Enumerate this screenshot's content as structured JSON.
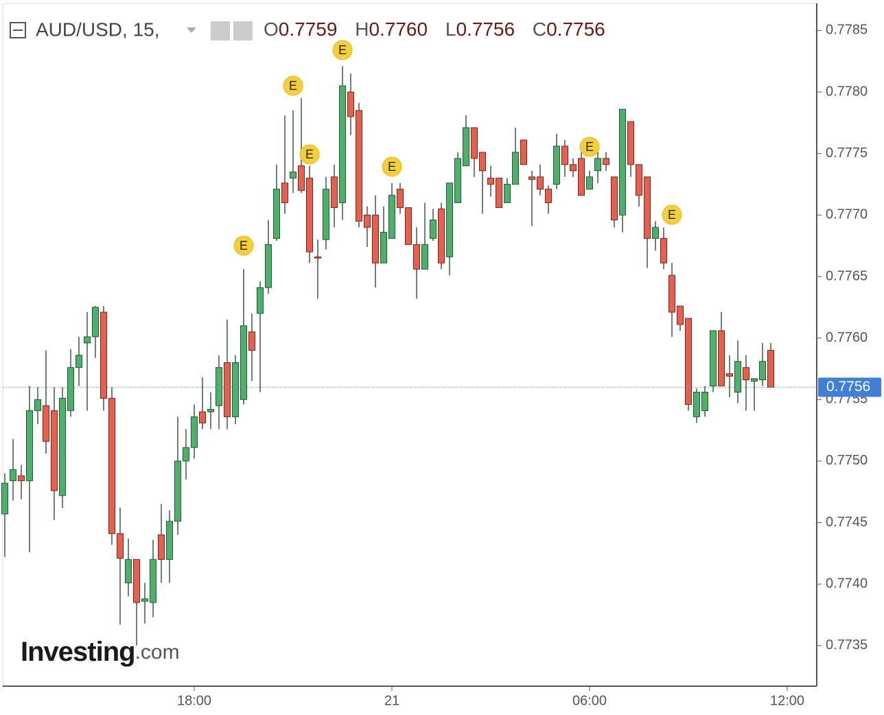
{
  "chart_data": {
    "type": "candlestick",
    "header": {
      "symbol": "AUD/USD, 15,",
      "open_label": "O",
      "open": "0.7759",
      "high_label": "H",
      "high": "0.7760",
      "low_label": "L",
      "low": "0.7756",
      "close_label": "C",
      "close": "0.7756"
    },
    "watermark": {
      "brand": "Investing",
      "suffix": ".com"
    },
    "categories": [
      null,
      null,
      null,
      null,
      null,
      null,
      null,
      null,
      null,
      null,
      null,
      null,
      null,
      null,
      null,
      null,
      null,
      null,
      null,
      null,
      null,
      null,
      null,
      "18:00",
      null,
      null,
      null,
      null,
      null,
      null,
      null,
      null,
      null,
      null,
      null,
      null,
      null,
      null,
      null,
      null,
      null,
      null,
      null,
      null,
      null,
      null,
      null,
      "21",
      null,
      null,
      null,
      null,
      null,
      null,
      null,
      null,
      null,
      null,
      null,
      null,
      null,
      null,
      null,
      null,
      null,
      null,
      null,
      null,
      null,
      null,
      null,
      "06:00",
      null,
      null,
      null,
      null,
      null,
      null,
      null,
      null,
      null,
      null,
      null,
      null,
      null,
      null,
      null,
      null,
      null,
      null,
      null,
      null,
      null,
      null,
      null,
      "12:00"
    ],
    "open": [
      0.77457,
      0.77484,
      0.77488,
      0.77484,
      0.77541,
      0.77545,
      0.77541,
      0.77472,
      0.77541,
      0.77576,
      0.77596,
      0.77601,
      0.77621,
      0.77551,
      0.77441,
      0.77401,
      0.7742,
      0.77386,
      0.77385,
      0.7744,
      0.7742,
      0.77451,
      0.775,
      0.77511,
      0.7754,
      0.7754,
      0.77545,
      0.7758,
      0.77536,
      0.7755,
      0.77605,
      0.7762,
      0.77641,
      0.77681,
      0.77726,
      0.7773,
      0.7774,
      0.7773,
      0.77666,
      0.7768,
      0.77731,
      0.7771,
      0.778,
      0.77785,
      0.777,
      0.777,
      0.77661,
      0.77681,
      0.77721,
      0.77706,
      0.77676,
      0.77656,
      0.77681,
      0.77705,
      0.77666,
      0.7771,
      0.7774,
      0.77771,
      0.77751,
      0.7773,
      0.7773,
      0.7771,
      0.77725,
      0.77761,
      0.77731,
      0.77731,
      0.77721,
      0.77725,
      0.77756,
      0.77741,
      0.77746,
      0.77721,
      0.77736,
      0.77746,
      0.77731,
      0.777,
      0.77776,
      0.77741,
      0.77731,
      0.77681,
      0.77681,
      0.77651,
      0.77626,
      0.77616,
      0.77536,
      0.77541,
      0.77561,
      0.77606,
      0.77571,
      0.77556,
      0.77576,
      0.77565,
      0.77566,
      0.7759,
      null,
      null
    ],
    "high": [
      0.7749,
      0.77518,
      0.77497,
      0.77561,
      0.7756,
      0.7759,
      0.7756,
      0.7756,
      0.77591,
      0.77601,
      0.77621,
      0.77626,
      0.77626,
      0.7756,
      0.77462,
      0.77437,
      0.7742,
      0.77401,
      0.77436,
      0.77465,
      0.7746,
      0.77536,
      0.77526,
      0.77546,
      0.77568,
      0.77556,
      0.77586,
      0.77615,
      0.77586,
      0.77656,
      0.7762,
      0.77646,
      0.77696,
      0.77741,
      0.77781,
      0.77785,
      0.77795,
      0.7774,
      0.7768,
      0.77731,
      0.77741,
      0.77821,
      0.77815,
      0.77791,
      0.77707,
      0.77716,
      0.77707,
      0.77726,
      0.77726,
      0.77706,
      0.7769,
      0.7771,
      0.77705,
      0.7771,
      0.77726,
      0.77751,
      0.77781,
      0.77771,
      0.77751,
      0.7774,
      0.7773,
      0.7773,
      0.77771,
      0.77761,
      0.77736,
      0.77741,
      0.77724,
      0.77766,
      0.77761,
      0.77746,
      0.77751,
      0.77736,
      0.77751,
      0.77751,
      0.77731,
      0.77786,
      0.77776,
      0.77741,
      0.77731,
      0.77695,
      0.7769,
      0.77661,
      0.77626,
      0.77616,
      0.77559,
      0.77561,
      0.77606,
      0.77621,
      0.77586,
      0.77598,
      0.77586,
      0.77567,
      0.77596,
      0.77596,
      null,
      null
    ],
    "low": [
      0.77422,
      0.77468,
      0.77469,
      0.77426,
      0.7753,
      0.77506,
      0.77452,
      0.77462,
      0.77536,
      0.77561,
      0.77541,
      0.77584,
      0.77541,
      0.77432,
      0.77367,
      0.7739,
      0.7735,
      0.77368,
      0.77373,
      0.77401,
      0.77401,
      0.7744,
      0.77485,
      0.77502,
      0.77526,
      0.77526,
      0.77526,
      0.77526,
      0.7753,
      0.77546,
      0.77565,
      0.77556,
      0.77636,
      0.77679,
      0.77701,
      0.77718,
      0.77718,
      0.77661,
      0.77632,
      0.77672,
      0.7769,
      0.77696,
      0.77765,
      0.7769,
      0.77674,
      0.77641,
      0.77661,
      0.77681,
      0.77701,
      0.77676,
      0.77632,
      0.77656,
      0.77679,
      0.77656,
      0.77651,
      0.7771,
      0.7774,
      0.77731,
      0.77701,
      0.77715,
      0.77706,
      0.7771,
      0.77725,
      0.77741,
      0.77691,
      0.77716,
      0.77701,
      0.77721,
      0.77731,
      0.77731,
      0.77716,
      0.77721,
      0.77726,
      0.77736,
      0.7769,
      0.77686,
      0.77731,
      0.77707,
      0.77657,
      0.77671,
      0.77656,
      0.77601,
      0.77606,
      0.77541,
      0.77531,
      0.77536,
      0.77556,
      0.77561,
      0.77552,
      0.77547,
      0.77541,
      0.77541,
      0.77561,
      0.7756,
      null,
      null
    ],
    "close": [
      0.77482,
      0.77493,
      0.77484,
      0.77541,
      0.7755,
      0.77516,
      0.77476,
      0.77551,
      0.77576,
      0.77586,
      0.77601,
      0.77625,
      0.77551,
      0.77441,
      0.77421,
      0.7742,
      0.77385,
      0.77388,
      0.7742,
      0.7742,
      0.77451,
      0.775,
      0.77511,
      0.77536,
      0.77531,
      0.77542,
      0.77576,
      0.77536,
      0.7758,
      0.7761,
      0.7759,
      0.77641,
      0.77676,
      0.77721,
      0.7771,
      0.77735,
      0.7772,
      0.7767,
      0.77665,
      0.77721,
      0.77706,
      0.77805,
      0.7778,
      0.77695,
      0.7769,
      0.77661,
      0.77686,
      0.77716,
      0.77706,
      0.77676,
      0.77656,
      0.77676,
      0.77696,
      0.77661,
      0.77726,
      0.77746,
      0.77771,
      0.77746,
      0.77736,
      0.77725,
      0.77706,
      0.77725,
      0.77751,
      0.77741,
      0.77729,
      0.77721,
      0.7771,
      0.77756,
      0.77741,
      0.77736,
      0.77716,
      0.77731,
      0.77746,
      0.77741,
      0.77696,
      0.77786,
      0.77741,
      0.77716,
      0.77681,
      0.7769,
      0.77661,
      0.77621,
      0.77611,
      0.77546,
      0.77556,
      0.77556,
      0.77606,
      0.77561,
      0.77569,
      0.77581,
      0.77566,
      0.77567,
      0.77581,
      0.7756,
      null,
      null
    ],
    "up_color": "#4fb06c",
    "down_color": "#e5604f",
    "events": [
      "E",
      "E",
      "E",
      "E",
      "E",
      "E",
      "E"
    ],
    "last_price": 0.7756,
    "ylim": [
      0.77317,
      0.77872
    ],
    "yticks": [
      0.7735,
      {
        "value": 0.774,
        "label": "0.7740"
      },
      0.7745,
      {
        "value": 0.775,
        "label": "0.7750"
      },
      0.7755,
      {
        "value": 0.776,
        "label": "0.7760"
      },
      0.7765,
      {
        "value": 0.777,
        "label": "0.7770"
      },
      0.7775,
      {
        "value": 0.778,
        "label": "0.7780"
      },
      0.7785
    ]
  }
}
